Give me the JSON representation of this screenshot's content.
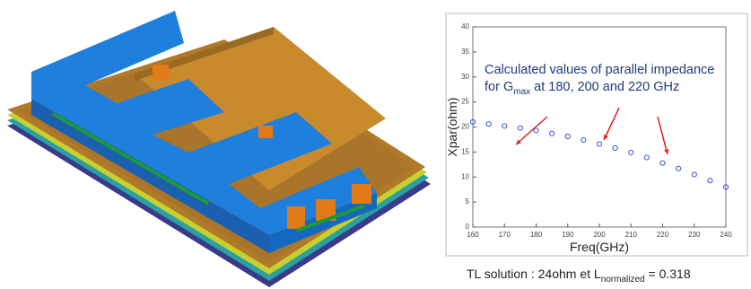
{
  "chart_data": {
    "type": "scatter",
    "xlabel": "Freq(GHz)",
    "ylabel": "Xpar(ohm)",
    "xlim": [
      160,
      240
    ],
    "ylim": [
      0,
      40
    ],
    "xticks": [
      160,
      170,
      180,
      190,
      200,
      210,
      220,
      230,
      240
    ],
    "yticks": [
      0,
      5,
      10,
      15,
      20,
      25,
      30,
      35,
      40
    ],
    "series": [
      {
        "color": "#2a3cd8",
        "x": [
          160,
          165,
          170,
          175,
          180,
          185,
          190,
          195,
          200,
          205,
          210,
          215,
          220,
          225,
          230,
          235,
          240
        ],
        "values": [
          21.0,
          20.6,
          20.2,
          19.8,
          19.3,
          18.7,
          18.1,
          17.4,
          16.6,
          15.8,
          14.9,
          13.9,
          12.8,
          11.7,
          10.5,
          9.3,
          8.0
        ]
      }
    ],
    "annotation": {
      "line1": "Calculated values of parallel impedance",
      "line2_pre": "for G",
      "line2_sub": "max",
      "line2_post": " at 180, 200 and 220 GHz"
    },
    "caption": {
      "pre": "TL solution : 24ohm et L",
      "sub": "normalized",
      "post": " = 0.318"
    }
  }
}
